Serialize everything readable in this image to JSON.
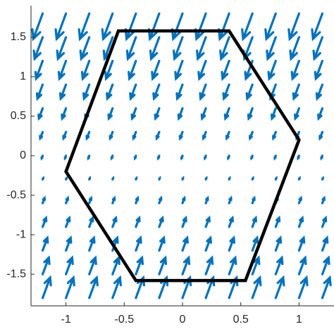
{
  "chart_data": {
    "type": "quiver",
    "color": "#0072bd",
    "x": [
      -1.2,
      -1.0,
      -0.8,
      -0.6,
      -0.4,
      -0.2,
      0,
      0.2,
      0.4,
      0.6,
      0.8,
      1.0,
      1.2
    ],
    "y": [
      -1.8,
      -1.5,
      -1.2,
      -0.9,
      -0.6,
      -0.3,
      0,
      0.3,
      0.6,
      0.9,
      1.2,
      1.5,
      1.8
    ],
    "u": [
      [
        0.4,
        0.4,
        0.4,
        0.4,
        0.4,
        0.4,
        0.4,
        0.4,
        0.4,
        0.4,
        0.4,
        0.4,
        0.4
      ],
      [
        0.33,
        0.33,
        0.33,
        0.33,
        0.33,
        0.33,
        0.33,
        0.33,
        0.33,
        0.33,
        0.33,
        0.33,
        0.33
      ],
      [
        0.25,
        0.25,
        0.25,
        0.25,
        0.25,
        0.25,
        0.25,
        0.25,
        0.25,
        0.25,
        0.25,
        0.25,
        0.25
      ],
      [
        0.18,
        0.18,
        0.18,
        0.18,
        0.18,
        0.18,
        0.18,
        0.18,
        0.18,
        0.18,
        0.18,
        0.18,
        0.18
      ],
      [
        0.1,
        0.1,
        0.1,
        0.1,
        0.1,
        0.1,
        0.1,
        0.1,
        0.1,
        0.1,
        0.1,
        0.1,
        0.1
      ],
      [
        0.03,
        0.03,
        0.03,
        0.03,
        0.03,
        0.03,
        0.03,
        0.03,
        0.03,
        0.03,
        0.03,
        0.03,
        0.03
      ],
      [
        -0.05,
        -0.05,
        -0.05,
        -0.05,
        -0.05,
        -0.05,
        -0.05,
        -0.05,
        -0.05,
        -0.05,
        -0.05,
        -0.05,
        -0.05
      ],
      [
        -0.13,
        -0.13,
        -0.13,
        -0.13,
        -0.13,
        -0.13,
        -0.13,
        -0.13,
        -0.13,
        -0.13,
        -0.13,
        -0.13,
        -0.13
      ],
      [
        -0.2,
        -0.2,
        -0.2,
        -0.2,
        -0.2,
        -0.2,
        -0.2,
        -0.2,
        -0.2,
        -0.2,
        -0.2,
        -0.2,
        -0.2
      ],
      [
        -0.28,
        -0.28,
        -0.28,
        -0.28,
        -0.28,
        -0.28,
        -0.28,
        -0.28,
        -0.28,
        -0.28,
        -0.28,
        -0.28,
        -0.28
      ],
      [
        -0.35,
        -0.35,
        -0.35,
        -0.35,
        -0.35,
        -0.35,
        -0.35,
        -0.35,
        -0.35,
        -0.35,
        -0.35,
        -0.35,
        -0.35
      ],
      [
        -0.43,
        -0.43,
        -0.43,
        -0.43,
        -0.43,
        -0.43,
        -0.43,
        -0.43,
        -0.43,
        -0.43,
        -0.43,
        -0.43,
        -0.43
      ],
      [
        -0.5,
        -0.5,
        -0.5,
        -0.5,
        -0.5,
        -0.5,
        -0.5,
        -0.5,
        -0.5,
        -0.5,
        -0.5,
        -0.5,
        -0.5
      ]
    ],
    "v": [
      [
        1.6,
        1.6,
        1.6,
        1.6,
        1.6,
        1.6,
        1.6,
        1.6,
        1.6,
        1.6,
        1.6,
        1.6,
        1.6
      ],
      [
        1.3,
        1.3,
        1.3,
        1.3,
        1.3,
        1.3,
        1.3,
        1.3,
        1.3,
        1.3,
        1.3,
        1.3,
        1.3
      ],
      [
        1.0,
        1.0,
        1.0,
        1.0,
        1.0,
        1.0,
        1.0,
        1.0,
        1.0,
        1.0,
        1.0,
        1.0,
        1.0
      ],
      [
        0.7,
        0.7,
        0.7,
        0.7,
        0.7,
        0.7,
        0.7,
        0.7,
        0.7,
        0.7,
        0.7,
        0.7,
        0.7
      ],
      [
        0.4,
        0.4,
        0.4,
        0.4,
        0.4,
        0.4,
        0.4,
        0.4,
        0.4,
        0.4,
        0.4,
        0.4,
        0.4
      ],
      [
        0.1,
        0.1,
        0.1,
        0.1,
        0.1,
        0.1,
        0.1,
        0.1,
        0.1,
        0.1,
        0.1,
        0.1,
        0.1
      ],
      [
        -0.2,
        -0.2,
        -0.2,
        -0.2,
        -0.2,
        -0.2,
        -0.2,
        -0.2,
        -0.2,
        -0.2,
        -0.2,
        -0.2,
        -0.2
      ],
      [
        -0.5,
        -0.5,
        -0.5,
        -0.5,
        -0.5,
        -0.5,
        -0.5,
        -0.5,
        -0.5,
        -0.5,
        -0.5,
        -0.5,
        -0.5
      ],
      [
        -0.8,
        -0.8,
        -0.8,
        -0.8,
        -0.8,
        -0.8,
        -0.8,
        -0.8,
        -0.8,
        -0.8,
        -0.8,
        -0.8,
        -0.8
      ],
      [
        -1.1,
        -1.1,
        -1.1,
        -1.1,
        -1.1,
        -1.1,
        -1.1,
        -1.1,
        -1.1,
        -1.1,
        -1.1,
        -1.1,
        -1.1
      ],
      [
        -1.4,
        -1.4,
        -1.4,
        -1.4,
        -1.4,
        -1.4,
        -1.4,
        -1.4,
        -1.4,
        -1.4,
        -1.4,
        -1.4,
        -1.4
      ],
      [
        -1.7,
        -1.7,
        -1.7,
        -1.7,
        -1.7,
        -1.7,
        -1.7,
        -1.7,
        -1.7,
        -1.7,
        -1.7,
        -1.7,
        -1.7
      ],
      [
        -2.0,
        -2.0,
        -2.0,
        -2.0,
        -2.0,
        -2.0,
        -2.0,
        -2.0,
        -2.0,
        -2.0,
        -2.0,
        -2.0,
        -2.0
      ]
    ],
    "polygon": {
      "x": [
        -0.55,
        0.4,
        1.0,
        0.54,
        -0.4,
        -1.0
      ],
      "y": [
        1.58,
        1.58,
        0.2,
        -1.58,
        -1.58,
        -0.2
      ],
      "color": "#000000"
    },
    "xlim": [
      -1.3,
      1.3
    ],
    "ylim": [
      -1.9,
      1.9
    ],
    "xticks": [
      -1,
      -0.5,
      0,
      0.5,
      1
    ],
    "yticks": [
      -1.5,
      -1,
      -0.5,
      0,
      0.5,
      1,
      1.5
    ]
  }
}
